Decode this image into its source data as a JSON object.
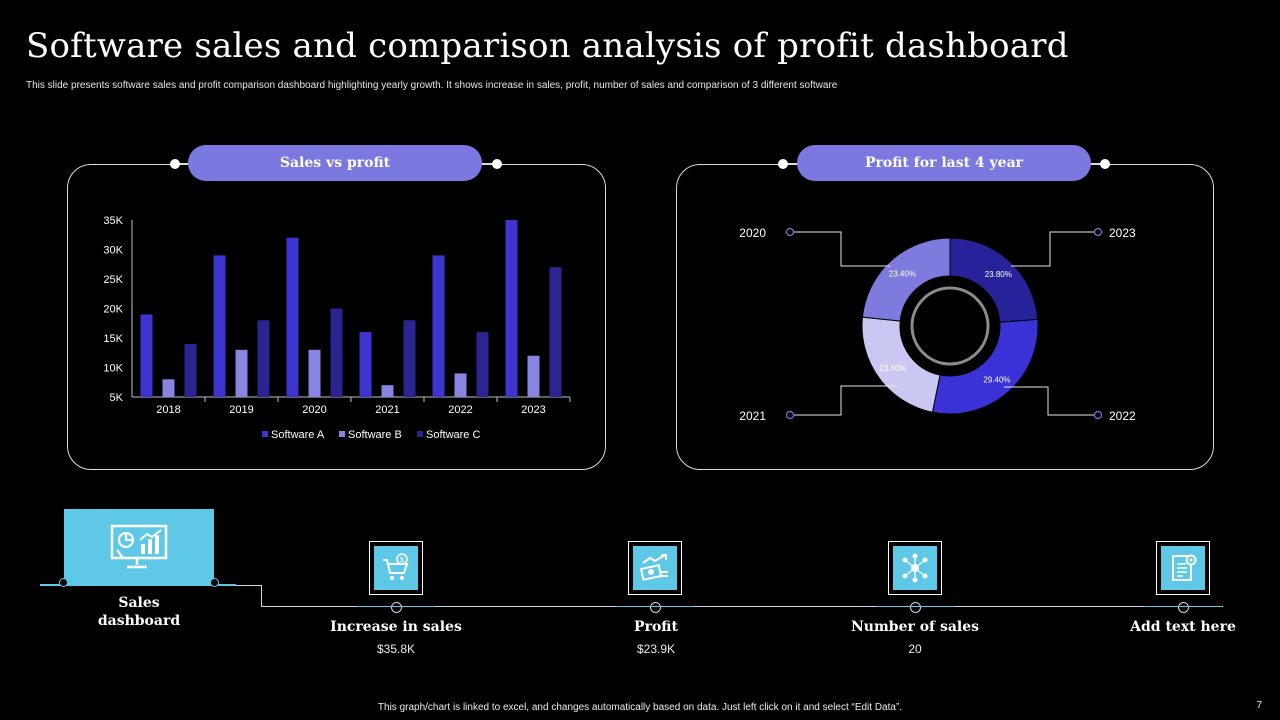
{
  "title": "Software sales and comparison analysis of profit dashboard",
  "subtitle": "This slide presents software sales and profit comparison dashboard highlighting yearly growth. It shows increase in sales, profit, number of sales and comparison of 3 different software",
  "colors": {
    "pill": "#7b78e0",
    "software_a": "#3d35d0",
    "software_b": "#8884e2",
    "software_c": "#2a2590",
    "icon_bg": "#5ec8e6"
  },
  "panels": {
    "left_title": "Sales vs profit",
    "right_title": "Profit for last 4 year"
  },
  "chart_data": [
    {
      "type": "bar",
      "title": "Sales vs profit",
      "categories": [
        "2018",
        "2019",
        "2020",
        "2021",
        "2022",
        "2023"
      ],
      "series": [
        {
          "name": "Software A",
          "color": "#3d35d0",
          "values": [
            19000,
            29000,
            32000,
            16000,
            29000,
            35000
          ]
        },
        {
          "name": "Software B",
          "color": "#8884e2",
          "values": [
            8000,
            13000,
            13000,
            7000,
            9000,
            12000
          ]
        },
        {
          "name": "Software C",
          "color": "#2a2590",
          "values": [
            14000,
            18000,
            20000,
            18000,
            16000,
            27000
          ]
        }
      ],
      "ylim": [
        5000,
        35000
      ],
      "yticks": [
        "5K",
        "10K",
        "15K",
        "20K",
        "25K",
        "30K",
        "35K"
      ],
      "legend": "bottom"
    },
    {
      "type": "pie",
      "title": "Profit for last 4 year",
      "slices": [
        {
          "label": "2023",
          "value": 23.8,
          "value_label": "23.80%",
          "color": "#27229a"
        },
        {
          "label": "2022",
          "value": 29.4,
          "value_label": "29.40%",
          "color": "#3a32d6"
        },
        {
          "label": "2021",
          "value": 23.4,
          "value_label": "23.40%",
          "color": "#cac8f2"
        },
        {
          "label": "2020",
          "value": 23.4,
          "value_label": "23.40%",
          "color": "#7f7bde"
        }
      ]
    }
  ],
  "hub": {
    "label_line1": "Sales",
    "label_line2": "dashboard",
    "icon": "presentation-chart-icon"
  },
  "kpis": [
    {
      "label": "Increase in sales",
      "value": "$35.8K",
      "icon": "shopping-cart-icon"
    },
    {
      "label": "Profit",
      "value": "$23.9K",
      "icon": "money-growth-icon"
    },
    {
      "label": "Number of sales",
      "value": "20",
      "icon": "network-icon"
    },
    {
      "label": "Add text here",
      "value": "",
      "icon": "document-gear-icon"
    }
  ],
  "footer": "This graph/chart is linked to excel, and changes automatically based on data. Just left click on it and select “Edit Data”.",
  "page_number": "7"
}
